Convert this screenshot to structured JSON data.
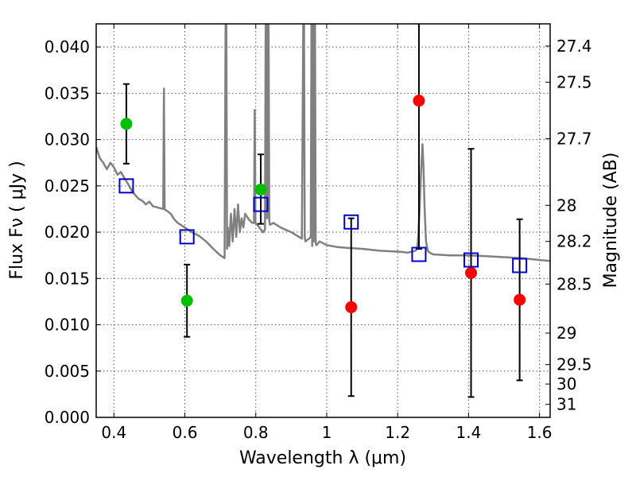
{
  "chart_data": {
    "type": "scatter",
    "title": "",
    "xlabel": "Wavelength  λ (μm)",
    "ylabel": "Flux  Fν  ( μJy )",
    "ylabel_right": "Magnitude (AB)",
    "xlim": [
      0.35,
      1.63
    ],
    "ylim": [
      0.0,
      0.0425
    ],
    "grid": true,
    "x_ticks": [
      0.4,
      0.6,
      0.8,
      1.0,
      1.2,
      1.4,
      1.6
    ],
    "x_tick_labels": [
      "0.4",
      "0.6",
      "0.8",
      "1",
      "1.2",
      "1.4",
      "1.6"
    ],
    "y_ticks": [
      0.0,
      0.005,
      0.01,
      0.015,
      0.02,
      0.025,
      0.03,
      0.035,
      0.04
    ],
    "y_tick_labels": [
      "0.000",
      "0.005",
      "0.010",
      "0.015",
      "0.020",
      "0.025",
      "0.030",
      "0.035",
      "0.040"
    ],
    "right_ticks": [
      {
        "label": "27.4",
        "flux": 0.0401
      },
      {
        "label": "27.5",
        "flux": 0.0362
      },
      {
        "label": "27.7",
        "flux": 0.0301
      },
      {
        "label": "28",
        "flux": 0.0229
      },
      {
        "label": "28.2",
        "flux": 0.019
      },
      {
        "label": "28.5",
        "flux": 0.0144
      },
      {
        "label": "29",
        "flux": 0.0091
      },
      {
        "label": "29.5",
        "flux": 0.0057
      },
      {
        "label": "30",
        "flux": 0.0036
      },
      {
        "label": "31",
        "flux": 0.0014
      }
    ],
    "colors": {
      "model": "#808080",
      "green": "#00c000",
      "red": "#ff0000",
      "square": "#0000cc",
      "errorbar": "#000000",
      "grid": "#555555"
    },
    "series": [
      {
        "marker": "circle",
        "color": "#00c000",
        "points": [
          {
            "x": 0.435,
            "y": 0.0317,
            "yerr_low": 0.0274,
            "yerr_high": 0.036
          },
          {
            "x": 0.606,
            "y": 0.0126,
            "yerr_low": 0.0087,
            "yerr_high": 0.0165
          },
          {
            "x": 0.814,
            "y": 0.0246,
            "yerr_low": 0.0209,
            "yerr_high": 0.0284
          }
        ]
      },
      {
        "marker": "circle",
        "color": "#ff0000",
        "points": [
          {
            "x": 1.069,
            "y": 0.0119,
            "yerr_low": 0.0023,
            "yerr_high": 0.0215
          },
          {
            "x": 1.26,
            "y": 0.0342,
            "yerr_low": 0.0182,
            "yerr_high": 0.043
          },
          {
            "x": 1.407,
            "y": 0.0156,
            "yerr_low": 0.0022,
            "yerr_high": 0.029
          },
          {
            "x": 1.544,
            "y": 0.0127,
            "yerr_low": 0.004,
            "yerr_high": 0.0214
          }
        ]
      },
      {
        "marker": "square",
        "color": "#0000cc",
        "points": [
          {
            "x": 0.435,
            "y": 0.025
          },
          {
            "x": 0.606,
            "y": 0.0195
          },
          {
            "x": 0.814,
            "y": 0.023
          },
          {
            "x": 1.069,
            "y": 0.0211
          },
          {
            "x": 1.26,
            "y": 0.0176
          },
          {
            "x": 1.407,
            "y": 0.017
          },
          {
            "x": 1.544,
            "y": 0.0164
          }
        ]
      }
    ],
    "model_spectrum": {
      "color": "#808080",
      "x": [
        0.35,
        0.36,
        0.37,
        0.38,
        0.39,
        0.4,
        0.41,
        0.42,
        0.43,
        0.44,
        0.45,
        0.46,
        0.47,
        0.48,
        0.49,
        0.5,
        0.51,
        0.52,
        0.53,
        0.539,
        0.541,
        0.543,
        0.545,
        0.55,
        0.56,
        0.57,
        0.58,
        0.6,
        0.62,
        0.64,
        0.66,
        0.68,
        0.7,
        0.712,
        0.715,
        0.717,
        0.719,
        0.721,
        0.725,
        0.73,
        0.735,
        0.74,
        0.745,
        0.75,
        0.755,
        0.76,
        0.765,
        0.77,
        0.78,
        0.79,
        0.795,
        0.797,
        0.799,
        0.802,
        0.81,
        0.82,
        0.826,
        0.828,
        0.83,
        0.832,
        0.834,
        0.836,
        0.838,
        0.84,
        0.85,
        0.87,
        0.9,
        0.93,
        0.934,
        0.936,
        0.938,
        0.94,
        0.95,
        0.955,
        0.957,
        0.959,
        0.961,
        0.963,
        0.965,
        0.967,
        0.969,
        0.971,
        0.98,
        1.0,
        1.03,
        1.06,
        1.1,
        1.15,
        1.2,
        1.23,
        1.25,
        1.255,
        1.258,
        1.262,
        1.266,
        1.27,
        1.273,
        1.276,
        1.28,
        1.285,
        1.29,
        1.3,
        1.35,
        1.4,
        1.45,
        1.5,
        1.55,
        1.6,
        1.63
      ],
      "y": [
        0.0292,
        0.028,
        0.0275,
        0.0268,
        0.0275,
        0.027,
        0.0262,
        0.0265,
        0.0258,
        0.0252,
        0.0245,
        0.024,
        0.0236,
        0.0234,
        0.023,
        0.0233,
        0.0228,
        0.0227,
        0.0226,
        0.0225,
        0.0355,
        0.0225,
        0.0224,
        0.0223,
        0.022,
        0.0214,
        0.021,
        0.0205,
        0.02,
        0.0196,
        0.019,
        0.0182,
        0.0175,
        0.0172,
        0.043,
        0.043,
        0.0182,
        0.0205,
        0.0185,
        0.022,
        0.019,
        0.0225,
        0.0195,
        0.023,
        0.02,
        0.0215,
        0.0205,
        0.022,
        0.0214,
        0.021,
        0.021,
        0.0332,
        0.021,
        0.0209,
        0.0205,
        0.02,
        0.0203,
        0.043,
        0.043,
        0.0215,
        0.043,
        0.043,
        0.0212,
        0.0208,
        0.021,
        0.0205,
        0.02,
        0.0193,
        0.043,
        0.043,
        0.0195,
        0.019,
        0.0193,
        0.0195,
        0.043,
        0.0185,
        0.043,
        0.019,
        0.043,
        0.043,
        0.0188,
        0.0186,
        0.019,
        0.0186,
        0.0184,
        0.0183,
        0.0182,
        0.018,
        0.0179,
        0.0178,
        0.018,
        0.0182,
        0.0195,
        0.0225,
        0.0265,
        0.0295,
        0.027,
        0.0225,
        0.019,
        0.018,
        0.0178,
        0.0176,
        0.0175,
        0.0175,
        0.0174,
        0.0173,
        0.0172,
        0.017,
        0.0169
      ]
    }
  }
}
